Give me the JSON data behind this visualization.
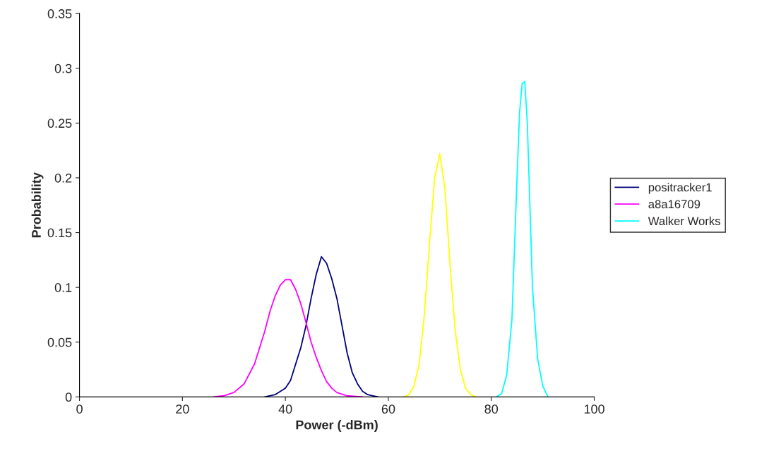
{
  "chart_data": {
    "type": "line",
    "xlabel": "Power (-dBm)",
    "ylabel": "Probability",
    "xlim": [
      0,
      100
    ],
    "xticks": [
      0,
      20,
      40,
      60,
      80,
      100
    ],
    "ylim": [
      0,
      0.35
    ],
    "yticks": [
      0,
      0.05,
      0.1,
      0.15,
      0.2,
      0.25,
      0.3,
      0.35
    ],
    "grid": false,
    "legend": "right",
    "marker": "none",
    "line_style": "solid",
    "series": [
      {
        "name": "positracker1",
        "color": "#000080",
        "x": [
          36,
          38,
          40,
          41,
          42,
          43,
          44,
          45,
          46,
          47,
          48,
          49,
          50,
          51,
          52,
          53,
          54,
          55,
          56,
          57,
          58
        ],
        "values": [
          0,
          0.002,
          0.008,
          0.015,
          0.03,
          0.045,
          0.065,
          0.09,
          0.112,
          0.128,
          0.122,
          0.108,
          0.09,
          0.065,
          0.04,
          0.022,
          0.012,
          0.005,
          0.002,
          0.001,
          0
        ]
      },
      {
        "name": "a8a16709",
        "color": "#ff00ff",
        "x": [
          26,
          28,
          30,
          32,
          34,
          35,
          36,
          37,
          38,
          39,
          40,
          41,
          42,
          43,
          44,
          45,
          46,
          47,
          48,
          49,
          50,
          52,
          55
        ],
        "values": [
          0,
          0.001,
          0.004,
          0.012,
          0.03,
          0.045,
          0.06,
          0.078,
          0.092,
          0.102,
          0.107,
          0.107,
          0.098,
          0.085,
          0.068,
          0.05,
          0.036,
          0.024,
          0.014,
          0.008,
          0.004,
          0.001,
          0
        ]
      },
      {
        "color": "#ffff00",
        "x": [
          63,
          64,
          65,
          66,
          67,
          68,
          69,
          70,
          71,
          72,
          73,
          74,
          75,
          76,
          77
        ],
        "values": [
          0,
          0.002,
          0.01,
          0.03,
          0.075,
          0.14,
          0.2,
          0.222,
          0.19,
          0.12,
          0.06,
          0.025,
          0.008,
          0.002,
          0
        ]
      },
      {
        "name": "Walker Works",
        "color": "#00ffff",
        "x": [
          81,
          82,
          83,
          84,
          85,
          85.5,
          86,
          86.5,
          87,
          88,
          89,
          90,
          91
        ],
        "values": [
          0,
          0.003,
          0.02,
          0.07,
          0.2,
          0.26,
          0.286,
          0.288,
          0.25,
          0.1,
          0.035,
          0.01,
          0
        ]
      }
    ]
  }
}
